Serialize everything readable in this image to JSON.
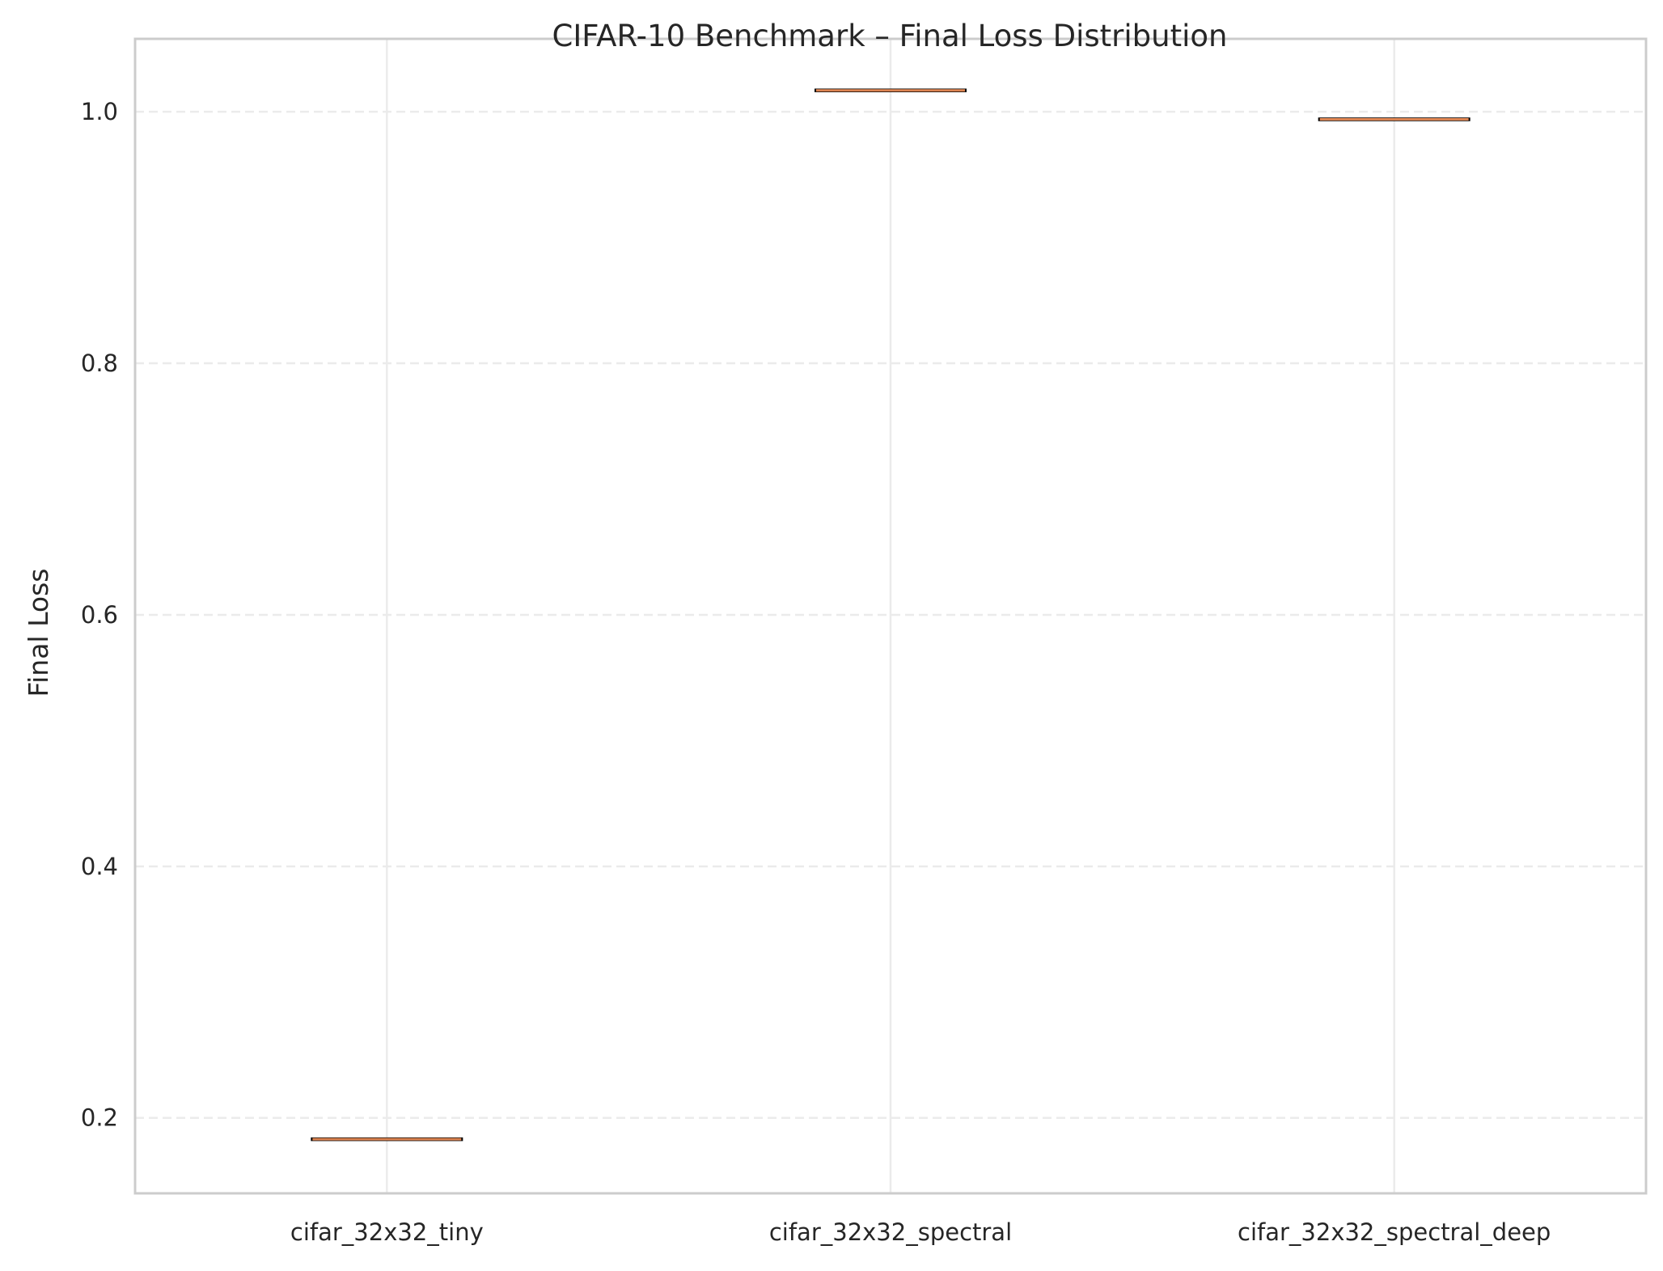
{
  "chart_data": {
    "type": "box",
    "title": "CIFAR-10 Benchmark – Final Loss Distribution",
    "xlabel": "",
    "ylabel": "Final Loss",
    "categories": [
      "cifar_32x32_tiny",
      "cifar_32x32_spectral",
      "cifar_32x32_spectral_deep"
    ],
    "values": [
      0.183,
      1.017,
      0.994
    ],
    "ylim": [
      0.14,
      1.058
    ],
    "yticks": [
      0.2,
      0.4,
      0.6,
      0.8,
      1.0
    ],
    "ytick_labels": [
      "0.2",
      "0.4",
      "0.6",
      "0.8",
      "1.0"
    ],
    "grid": true,
    "legend": "none",
    "colors": {
      "median": "#dd8452",
      "box_edge": "#000000",
      "grid": "#ebebeb",
      "spine": "#cccccc",
      "text": "#262626"
    }
  }
}
